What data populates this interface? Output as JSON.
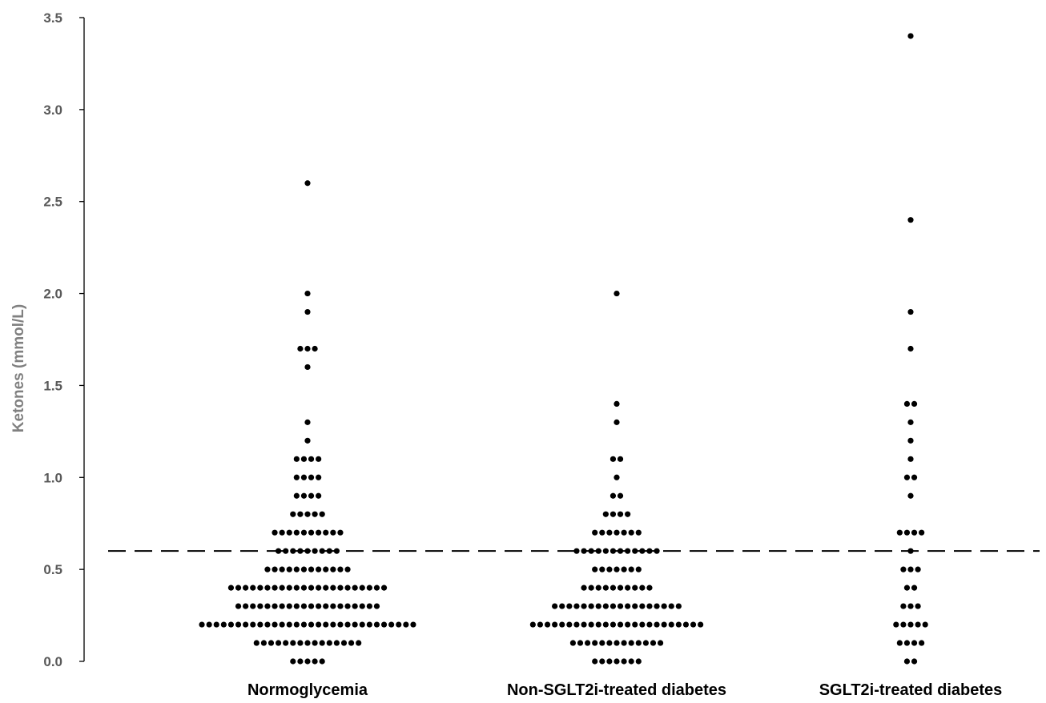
{
  "chart_data": {
    "type": "scatter",
    "subtype": "dot-plot",
    "title": "",
    "xlabel": "",
    "ylabel": "Ketones (mmol/L)",
    "ylim": [
      0,
      3.5
    ],
    "yticks": [
      "0.0",
      "0.5",
      "1.0",
      "1.5",
      "2.0",
      "2.5",
      "3.0",
      "3.5"
    ],
    "categories": [
      "Normoglycemia",
      "Non-SGLT2i-treated diabetes",
      "SGLT2i-treated diabetes"
    ],
    "threshold": 0.6,
    "threshold_style": "dashed",
    "grid": false,
    "legend": "none",
    "series": [
      {
        "name": "Normoglycemia",
        "counts": [
          {
            "y": 0.0,
            "n": 5
          },
          {
            "y": 0.1,
            "n": 15
          },
          {
            "y": 0.2,
            "n": 30
          },
          {
            "y": 0.3,
            "n": 20
          },
          {
            "y": 0.4,
            "n": 22
          },
          {
            "y": 0.5,
            "n": 12
          },
          {
            "y": 0.6,
            "n": 9
          },
          {
            "y": 0.7,
            "n": 10
          },
          {
            "y": 0.8,
            "n": 5
          },
          {
            "y": 0.9,
            "n": 4
          },
          {
            "y": 1.0,
            "n": 4
          },
          {
            "y": 1.1,
            "n": 4
          },
          {
            "y": 1.2,
            "n": 1
          },
          {
            "y": 1.3,
            "n": 1
          },
          {
            "y": 1.6,
            "n": 1
          },
          {
            "y": 1.7,
            "n": 3
          },
          {
            "y": 1.9,
            "n": 1
          },
          {
            "y": 2.0,
            "n": 1
          },
          {
            "y": 2.6,
            "n": 1
          }
        ]
      },
      {
        "name": "Non-SGLT2i-treated diabetes",
        "counts": [
          {
            "y": 0.0,
            "n": 7
          },
          {
            "y": 0.1,
            "n": 13
          },
          {
            "y": 0.2,
            "n": 24
          },
          {
            "y": 0.3,
            "n": 18
          },
          {
            "y": 0.4,
            "n": 10
          },
          {
            "y": 0.5,
            "n": 7
          },
          {
            "y": 0.6,
            "n": 12
          },
          {
            "y": 0.7,
            "n": 7
          },
          {
            "y": 0.8,
            "n": 4
          },
          {
            "y": 0.9,
            "n": 2
          },
          {
            "y": 1.0,
            "n": 1
          },
          {
            "y": 1.1,
            "n": 2
          },
          {
            "y": 1.3,
            "n": 1
          },
          {
            "y": 1.4,
            "n": 1
          },
          {
            "y": 2.0,
            "n": 1
          }
        ]
      },
      {
        "name": "SGLT2i-treated diabetes",
        "counts": [
          {
            "y": 0.0,
            "n": 2
          },
          {
            "y": 0.1,
            "n": 4
          },
          {
            "y": 0.2,
            "n": 5
          },
          {
            "y": 0.3,
            "n": 3
          },
          {
            "y": 0.4,
            "n": 2
          },
          {
            "y": 0.5,
            "n": 3
          },
          {
            "y": 0.6,
            "n": 1
          },
          {
            "y": 0.7,
            "n": 4
          },
          {
            "y": 0.9,
            "n": 1
          },
          {
            "y": 1.0,
            "n": 2
          },
          {
            "y": 1.1,
            "n": 1
          },
          {
            "y": 1.2,
            "n": 1
          },
          {
            "y": 1.3,
            "n": 1
          },
          {
            "y": 1.4,
            "n": 2
          },
          {
            "y": 1.7,
            "n": 1
          },
          {
            "y": 1.9,
            "n": 1
          },
          {
            "y": 2.4,
            "n": 1
          },
          {
            "y": 3.4,
            "n": 1
          }
        ]
      }
    ],
    "colors": {
      "dots": "#000000",
      "axis": "#000000",
      "tick_label": "#595959",
      "axis_label": "#808080",
      "threshold": "#000000"
    }
  }
}
